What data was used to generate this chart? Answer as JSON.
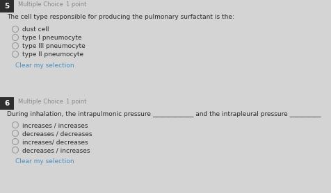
{
  "bg_color": "#d4d4d4",
  "q5_num": "5",
  "q5_num_bg": "#2e2e2e",
  "q5_type": "Multiple Choice",
  "q5_points": "1 point",
  "q5_question": "The cell type responsible for producing the pulmonary surfactant is the:",
  "q5_options": [
    "dust cell",
    "type I pneumocyte",
    "type III pneumocyte",
    "type II pneumocyte"
  ],
  "q5_clear": "Clear my selection",
  "q6_num": "6",
  "q6_num_bg": "#2e2e2e",
  "q6_type": "Multiple Choice",
  "q6_points": "1 point",
  "q6_question": "During inhalation, the intrapulmonic pressure _____________ and the intrapleural pressure __________",
  "q6_options": [
    "increases / increases",
    "decreases / decreases",
    "increases/ decreases",
    "decreases / increases"
  ],
  "q6_clear": "Clear my selection",
  "text_color": "#2a2a2a",
  "option_text_color": "#2a2a2a",
  "clear_color": "#4a8fc0",
  "header_text_color": "#888888",
  "circle_edge_color": "#999999",
  "fig_w": 4.77,
  "fig_h": 2.78,
  "dpi": 100
}
